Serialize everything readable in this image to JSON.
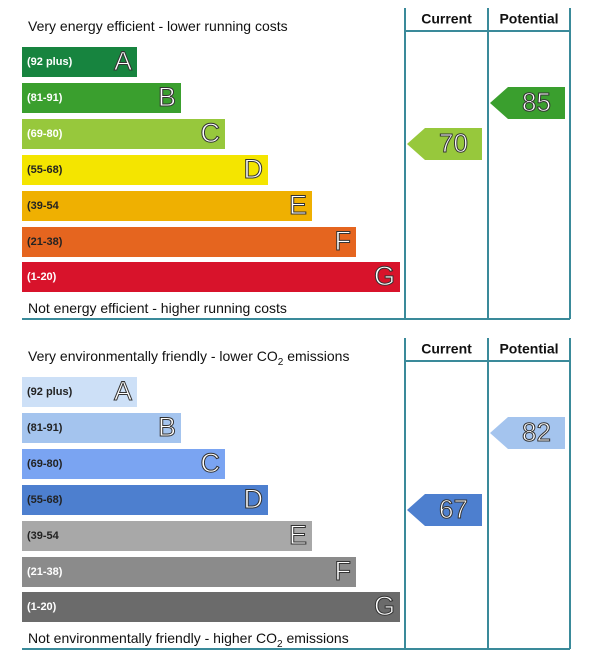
{
  "panels": [
    {
      "top_text": [
        "Very energy efficient - lower running costs"
      ],
      "bottom_text": [
        "Not energy efficient - higher running costs"
      ],
      "headers": [
        "Current",
        "Potential"
      ],
      "bands": [
        {
          "range": "(92 plus)",
          "letter": "A",
          "color": "#17843f",
          "text_color": "#ffffff"
        },
        {
          "range": "(81-91)",
          "letter": "B",
          "color": "#3a9f2e",
          "text_color": "#ffffff"
        },
        {
          "range": "(69-80)",
          "letter": "C",
          "color": "#97c83c",
          "text_color": "#ffffff"
        },
        {
          "range": "(55-68)",
          "letter": "D",
          "color": "#f4e500",
          "text_color": "#222222"
        },
        {
          "range": "(39-54",
          "letter": "E",
          "color": "#efb001",
          "text_color": "#222222"
        },
        {
          "range": "(21-38)",
          "letter": "F",
          "color": "#e5651f",
          "text_color": "#222222"
        },
        {
          "range": "(1-20)",
          "letter": "G",
          "color": "#d8132b",
          "text_color": "#ffffff"
        }
      ],
      "current": 70,
      "potential": 85
    },
    {
      "top_text": [
        "Very environmentally friendly - lower CO",
        "2",
        " emissions"
      ],
      "bottom_text": [
        "Not environmentally friendly - higher CO",
        "2",
        " emissions"
      ],
      "headers": [
        "Current",
        "Potential"
      ],
      "bands": [
        {
          "range": "(92 plus)",
          "letter": "A",
          "color": "#cde0f7",
          "text_color": "#222222"
        },
        {
          "range": "(81-91)",
          "letter": "B",
          "color": "#a4c4ee",
          "text_color": "#222222"
        },
        {
          "range": "(69-80)",
          "letter": "C",
          "color": "#7aa4f2",
          "text_color": "#222222"
        },
        {
          "range": "(55-68)",
          "letter": "D",
          "color": "#4d7fcf",
          "text_color": "#222222"
        },
        {
          "range": "(39-54",
          "letter": "E",
          "color": "#a8a8a8",
          "text_color": "#222222"
        },
        {
          "range": "(21-38)",
          "letter": "F",
          "color": "#8b8b8b",
          "text_color": "#ffffff"
        },
        {
          "range": "(1-20)",
          "letter": "G",
          "color": "#6b6b6b",
          "text_color": "#ffffff"
        }
      ],
      "current": 67,
      "potential": 82
    }
  ]
}
